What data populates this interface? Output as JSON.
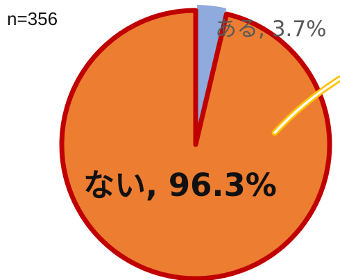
{
  "sample_size_label": "n=356",
  "chart_data": {
    "type": "pie",
    "title": "",
    "slices": [
      {
        "label": "ある",
        "value": 3.7,
        "display": "ある, 3.7%",
        "color": "#8FAADC"
      },
      {
        "label": "ない",
        "value": 96.3,
        "display": "ない, 96.3%",
        "color": "#ED7D31"
      }
    ],
    "border_color": "#C00000",
    "start_angle_deg": 0,
    "direction": "clockwise",
    "legend": "none"
  }
}
